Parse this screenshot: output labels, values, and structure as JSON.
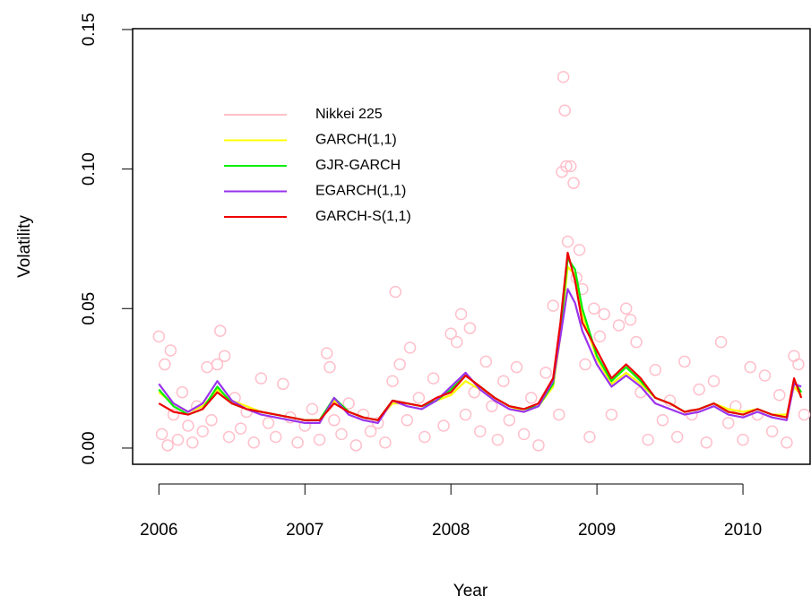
{
  "chart_data": {
    "type": "line",
    "xlabel": "Year",
    "ylabel": "Volatility",
    "xlim": [
      2005.82,
      2010.46
    ],
    "ylim": [
      -0.0058,
      0.1503
    ],
    "xticks": [
      2006,
      2007,
      2008,
      2009,
      2010
    ],
    "yticks": [
      {
        "value": 0,
        "label": "0.00"
      },
      {
        "value": 0.05,
        "label": "0.05"
      },
      {
        "value": 0.1,
        "label": "0.10"
      },
      {
        "value": 0.15,
        "label": "0.15"
      }
    ],
    "series": [
      {
        "name": "Nikkei 225",
        "color": "#ffc0cb",
        "kind": "points",
        "x": [
          2006.0,
          2006.02,
          2006.04,
          2006.06,
          2006.08,
          2006.1,
          2006.13,
          2006.16,
          2006.2,
          2006.23,
          2006.26,
          2006.3,
          2006.33,
          2006.36,
          2006.4,
          2006.42,
          2006.45,
          2006.48,
          2006.52,
          2006.56,
          2006.6,
          2006.65,
          2006.7,
          2006.75,
          2006.8,
          2006.85,
          2006.9,
          2006.95,
          2007.0,
          2007.05,
          2007.1,
          2007.15,
          2007.17,
          2007.2,
          2007.25,
          2007.3,
          2007.35,
          2007.4,
          2007.45,
          2007.5,
          2007.55,
          2007.6,
          2007.62,
          2007.65,
          2007.7,
          2007.72,
          2007.78,
          2007.82,
          2007.88,
          2007.95,
          2008.0,
          2008.04,
          2008.07,
          2008.1,
          2008.13,
          2008.16,
          2008.2,
          2008.24,
          2008.28,
          2008.32,
          2008.36,
          2008.4,
          2008.45,
          2008.5,
          2008.55,
          2008.6,
          2008.65,
          2008.7,
          2008.74,
          2008.76,
          2008.77,
          2008.78,
          2008.79,
          2008.8,
          2008.82,
          2008.84,
          2008.86,
          2008.88,
          2008.9,
          2008.92,
          2008.95,
          2008.98,
          2009.02,
          2009.05,
          2009.1,
          2009.15,
          2009.2,
          2009.23,
          2009.27,
          2009.3,
          2009.35,
          2009.4,
          2009.45,
          2009.5,
          2009.55,
          2009.6,
          2009.65,
          2009.7,
          2009.75,
          2009.8,
          2009.85,
          2009.9,
          2009.95,
          2010.0,
          2010.05,
          2010.1,
          2010.15,
          2010.2,
          2010.25,
          2010.3,
          2010.35,
          2010.38,
          2010.42
        ],
        "values": [
          0.04,
          0.005,
          0.03,
          0.001,
          0.035,
          0.012,
          0.003,
          0.02,
          0.008,
          0.002,
          0.015,
          0.006,
          0.029,
          0.01,
          0.03,
          0.042,
          0.033,
          0.004,
          0.018,
          0.007,
          0.013,
          0.002,
          0.025,
          0.009,
          0.004,
          0.023,
          0.011,
          0.002,
          0.008,
          0.014,
          0.003,
          0.034,
          0.029,
          0.01,
          0.005,
          0.016,
          0.001,
          0.012,
          0.006,
          0.009,
          0.002,
          0.024,
          0.056,
          0.03,
          0.01,
          0.036,
          0.018,
          0.004,
          0.025,
          0.008,
          0.041,
          0.038,
          0.048,
          0.012,
          0.043,
          0.02,
          0.006,
          0.031,
          0.015,
          0.003,
          0.024,
          0.01,
          0.029,
          0.005,
          0.018,
          0.001,
          0.027,
          0.051,
          0.012,
          0.099,
          0.133,
          0.121,
          0.101,
          0.074,
          0.101,
          0.095,
          0.061,
          0.071,
          0.057,
          0.03,
          0.004,
          0.05,
          0.04,
          0.048,
          0.012,
          0.044,
          0.05,
          0.046,
          0.038,
          0.02,
          0.003,
          0.028,
          0.01,
          0.017,
          0.004,
          0.031,
          0.012,
          0.021,
          0.002,
          0.024,
          0.038,
          0.009,
          0.015,
          0.003,
          0.029,
          0.012,
          0.026,
          0.006,
          0.019,
          0.002,
          0.033,
          0.03,
          0.012
        ]
      },
      {
        "name": "GARCH(1,1)",
        "color": "#ffff00",
        "kind": "line",
        "x": [
          2006.0,
          2006.1,
          2006.2,
          2006.3,
          2006.4,
          2006.5,
          2006.6,
          2006.7,
          2006.8,
          2006.9,
          2007.0,
          2007.1,
          2007.2,
          2007.3,
          2007.4,
          2007.5,
          2007.6,
          2007.7,
          2007.8,
          2007.9,
          2008.0,
          2008.1,
          2008.2,
          2008.3,
          2008.4,
          2008.5,
          2008.6,
          2008.7,
          2008.75,
          2008.8,
          2008.85,
          2008.9,
          2009.0,
          2009.1,
          2009.2,
          2009.3,
          2009.4,
          2009.5,
          2009.6,
          2009.7,
          2009.8,
          2009.9,
          2010.0,
          2010.1,
          2010.2,
          2010.3,
          2010.35,
          2010.4
        ],
        "values": [
          0.02,
          0.016,
          0.013,
          0.015,
          0.021,
          0.017,
          0.015,
          0.013,
          0.012,
          0.011,
          0.01,
          0.01,
          0.017,
          0.013,
          0.011,
          0.01,
          0.016,
          0.016,
          0.015,
          0.017,
          0.019,
          0.024,
          0.021,
          0.018,
          0.015,
          0.013,
          0.015,
          0.022,
          0.04,
          0.065,
          0.062,
          0.048,
          0.032,
          0.023,
          0.027,
          0.023,
          0.018,
          0.016,
          0.013,
          0.014,
          0.016,
          0.014,
          0.013,
          0.014,
          0.012,
          0.012,
          0.022,
          0.019
        ]
      },
      {
        "name": "GJR-GARCH",
        "color": "#00ee00",
        "kind": "line",
        "x": [
          2006.0,
          2006.1,
          2006.2,
          2006.3,
          2006.4,
          2006.5,
          2006.6,
          2006.7,
          2006.8,
          2006.9,
          2007.0,
          2007.1,
          2007.2,
          2007.3,
          2007.4,
          2007.5,
          2007.6,
          2007.7,
          2007.8,
          2007.9,
          2008.0,
          2008.1,
          2008.2,
          2008.3,
          2008.4,
          2008.5,
          2008.6,
          2008.7,
          2008.75,
          2008.8,
          2008.85,
          2008.9,
          2009.0,
          2009.1,
          2009.2,
          2009.3,
          2009.4,
          2009.5,
          2009.6,
          2009.7,
          2009.8,
          2009.9,
          2010.0,
          2010.1,
          2010.2,
          2010.3,
          2010.35,
          2010.4
        ],
        "values": [
          0.021,
          0.015,
          0.012,
          0.014,
          0.022,
          0.016,
          0.014,
          0.013,
          0.012,
          0.011,
          0.01,
          0.01,
          0.018,
          0.013,
          0.011,
          0.01,
          0.017,
          0.016,
          0.015,
          0.017,
          0.021,
          0.026,
          0.022,
          0.018,
          0.015,
          0.014,
          0.015,
          0.023,
          0.042,
          0.068,
          0.064,
          0.05,
          0.033,
          0.024,
          0.029,
          0.024,
          0.018,
          0.016,
          0.013,
          0.014,
          0.016,
          0.013,
          0.012,
          0.014,
          0.012,
          0.011,
          0.024,
          0.02
        ]
      },
      {
        "name": "EGARCH(1,1)",
        "color": "#9a32ee",
        "kind": "line",
        "x": [
          2006.0,
          2006.1,
          2006.2,
          2006.3,
          2006.4,
          2006.5,
          2006.6,
          2006.7,
          2006.8,
          2006.9,
          2007.0,
          2007.1,
          2007.2,
          2007.3,
          2007.4,
          2007.5,
          2007.6,
          2007.7,
          2007.8,
          2007.9,
          2008.0,
          2008.1,
          2008.2,
          2008.3,
          2008.4,
          2008.5,
          2008.6,
          2008.7,
          2008.75,
          2008.8,
          2008.85,
          2008.9,
          2009.0,
          2009.1,
          2009.2,
          2009.3,
          2009.4,
          2009.5,
          2009.6,
          2009.7,
          2009.8,
          2009.9,
          2010.0,
          2010.1,
          2010.2,
          2010.3,
          2010.35,
          2010.4
        ],
        "values": [
          0.023,
          0.016,
          0.013,
          0.016,
          0.024,
          0.017,
          0.014,
          0.012,
          0.011,
          0.01,
          0.009,
          0.009,
          0.018,
          0.012,
          0.01,
          0.009,
          0.017,
          0.015,
          0.014,
          0.017,
          0.022,
          0.027,
          0.021,
          0.017,
          0.014,
          0.013,
          0.015,
          0.024,
          0.04,
          0.057,
          0.052,
          0.042,
          0.03,
          0.022,
          0.026,
          0.022,
          0.016,
          0.014,
          0.012,
          0.013,
          0.015,
          0.012,
          0.011,
          0.013,
          0.011,
          0.01,
          0.023,
          0.022
        ]
      },
      {
        "name": "GARCH-S(1,1)",
        "color": "#ee0000",
        "kind": "line",
        "x": [
          2006.0,
          2006.1,
          2006.2,
          2006.3,
          2006.4,
          2006.5,
          2006.6,
          2006.7,
          2006.8,
          2006.9,
          2007.0,
          2007.1,
          2007.2,
          2007.3,
          2007.4,
          2007.5,
          2007.6,
          2007.7,
          2007.8,
          2007.9,
          2008.0,
          2008.1,
          2008.2,
          2008.3,
          2008.4,
          2008.5,
          2008.6,
          2008.7,
          2008.75,
          2008.8,
          2008.85,
          2008.9,
          2009.0,
          2009.1,
          2009.2,
          2009.3,
          2009.4,
          2009.5,
          2009.6,
          2009.7,
          2009.8,
          2009.9,
          2010.0,
          2010.1,
          2010.2,
          2010.3,
          2010.35,
          2010.4
        ],
        "values": [
          0.016,
          0.013,
          0.012,
          0.014,
          0.02,
          0.016,
          0.014,
          0.013,
          0.012,
          0.011,
          0.01,
          0.01,
          0.016,
          0.013,
          0.011,
          0.01,
          0.017,
          0.016,
          0.015,
          0.018,
          0.02,
          0.026,
          0.022,
          0.018,
          0.015,
          0.014,
          0.016,
          0.025,
          0.045,
          0.07,
          0.06,
          0.045,
          0.035,
          0.025,
          0.03,
          0.025,
          0.018,
          0.016,
          0.013,
          0.014,
          0.016,
          0.013,
          0.012,
          0.014,
          0.012,
          0.011,
          0.025,
          0.018
        ]
      }
    ]
  }
}
